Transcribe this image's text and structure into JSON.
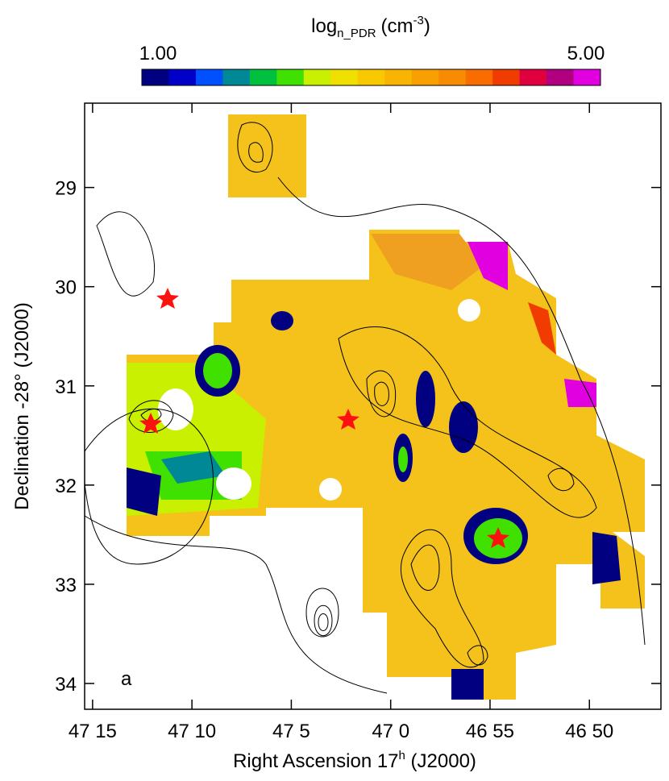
{
  "chart_data": {
    "type": "map",
    "title": {
      "base": "log",
      "sub": "n_PDR",
      "unit": "(cm",
      "sup": "-3",
      "end": ")"
    },
    "colorbar": {
      "range": [
        1,
        5
      ],
      "colors": [
        "#000080",
        "#0000c8",
        "#0050ff",
        "#008896",
        "#00c040",
        "#40e000",
        "#c8f000",
        "#f0e000",
        "#f8c800",
        "#f8b400",
        "#f8a000",
        "#f88c00",
        "#f86c00",
        "#f03c00",
        "#e00040",
        "#b00080",
        "#e000e0"
      ],
      "ticks": [
        {
          "value": 1,
          "label": "1.00"
        },
        {
          "value": 5,
          "label": "5.00"
        }
      ]
    },
    "xlabel": {
      "main": "Right Ascension   17",
      "sup": "h",
      "end": " (J2000)"
    },
    "ylabel": "Declination  -28° (J2000)",
    "xlim": [
      15.4,
      -13.6
    ],
    "xticks": [
      {
        "value": 15,
        "label": "47 15"
      },
      {
        "value": 10,
        "label": "47 10"
      },
      {
        "value": 5,
        "label": "47 5"
      },
      {
        "value": 0,
        "label": "47 0"
      },
      {
        "value": -5,
        "label": "46 55"
      },
      {
        "value": -10,
        "label": "46 50"
      }
    ],
    "ylim": [
      34.26,
      28.15
    ],
    "yticks": [
      29,
      30,
      31,
      32,
      33,
      34
    ],
    "panel_label": "a"
  }
}
